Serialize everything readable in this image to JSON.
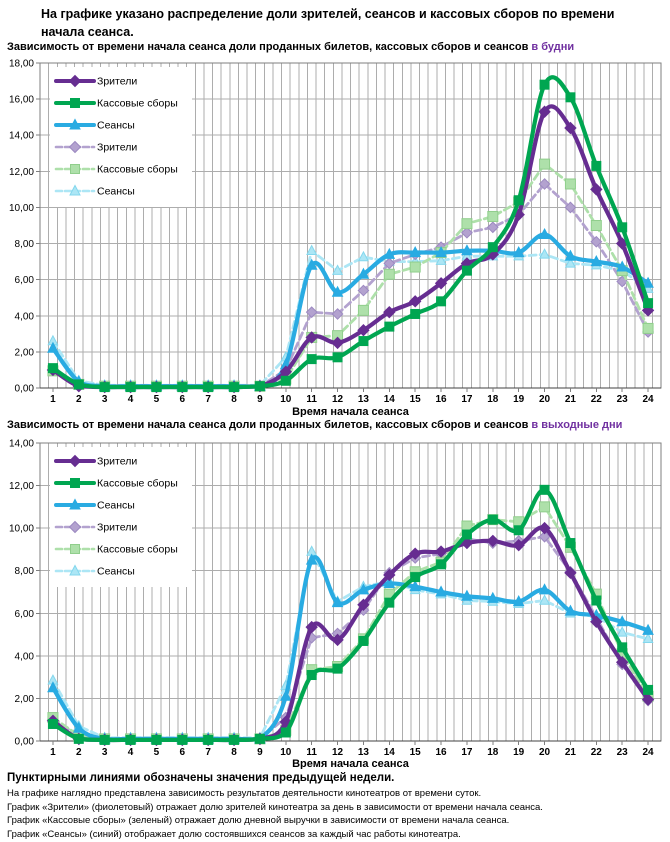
{
  "header": {
    "title": "На графике указано распределение доли зрителей, сеансов и кассовых сборов по времени начала сеанса."
  },
  "chart_data": [
    {
      "type": "line",
      "subtitle": "Зависимость от времени начала сеанса доли проданных билетов, кассовых сборов и сеансов",
      "subtitle_highlight": "в будни",
      "highlight_color": "#7030A0",
      "xlabel": "Время начала сеанса",
      "x": [
        1,
        2,
        3,
        4,
        5,
        6,
        7,
        8,
        9,
        10,
        11,
        12,
        13,
        14,
        15,
        16,
        17,
        18,
        19,
        20,
        21,
        22,
        23,
        24
      ],
      "ylim": [
        0,
        18
      ],
      "ytick_step": 2,
      "grid": true,
      "legend_position": "top-left",
      "series": [
        {
          "key": "viewers",
          "name": "Зрители",
          "color": "#662D91",
          "edge": "#662D91",
          "style": "solid",
          "marker": "diamond",
          "values": [
            1.0,
            0.1,
            0.05,
            0.05,
            0.05,
            0.05,
            0.05,
            0.05,
            0.1,
            0.9,
            2.8,
            2.5,
            3.2,
            4.2,
            4.8,
            5.8,
            6.9,
            7.4,
            9.6,
            15.3,
            14.4,
            11.0,
            8.0,
            4.3
          ]
        },
        {
          "key": "box-office",
          "name": "Кассовые сборы",
          "color": "#00A651",
          "edge": "#00A651",
          "style": "solid",
          "marker": "square",
          "values": [
            1.1,
            0.2,
            0.05,
            0.05,
            0.05,
            0.05,
            0.05,
            0.05,
            0.1,
            0.4,
            1.6,
            1.7,
            2.6,
            3.4,
            4.1,
            4.8,
            6.5,
            7.8,
            10.4,
            16.8,
            16.1,
            12.3,
            8.9,
            4.7
          ]
        },
        {
          "key": "sessions",
          "name": "Сеансы",
          "color": "#29ABE2",
          "edge": "#29ABE2",
          "style": "solid",
          "marker": "triangle",
          "values": [
            2.2,
            0.35,
            0.1,
            0.1,
            0.1,
            0.1,
            0.1,
            0.1,
            0.1,
            1.3,
            6.8,
            5.3,
            6.3,
            7.4,
            7.5,
            7.5,
            7.6,
            7.6,
            7.5,
            8.5,
            7.3,
            7.0,
            6.7,
            5.8
          ]
        },
        {
          "key": "viewers-prev-week",
          "name": "Зрители",
          "color": "#B3A2CF",
          "edge": "#9C89C1",
          "style": "dashed",
          "marker": "diamond",
          "values": [
            1.0,
            0.2,
            0.1,
            0.1,
            0.1,
            0.1,
            0.1,
            0.1,
            0.1,
            1.0,
            4.2,
            4.1,
            5.4,
            6.9,
            7.4,
            7.8,
            8.6,
            8.9,
            9.6,
            11.3,
            10.0,
            8.1,
            5.9,
            3.1
          ]
        },
        {
          "key": "box-office-prev-week",
          "name": "Кассовые сборы",
          "color": "#AEE0AA",
          "edge": "#90CE8C",
          "style": "dashed",
          "marker": "square",
          "values": [
            0.95,
            0.2,
            0.1,
            0.1,
            0.1,
            0.1,
            0.1,
            0.1,
            0.1,
            0.5,
            2.8,
            2.9,
            4.3,
            6.3,
            6.7,
            7.5,
            9.1,
            9.5,
            10.3,
            12.4,
            11.3,
            9.0,
            6.5,
            3.3
          ]
        },
        {
          "key": "sessions-prev-week",
          "name": "Сеансы",
          "color": "#ACE6F5",
          "edge": "#83D7ED",
          "style": "dashed",
          "marker": "triangle",
          "values": [
            2.6,
            0.4,
            0.15,
            0.15,
            0.15,
            0.15,
            0.15,
            0.15,
            0.15,
            1.7,
            7.6,
            6.5,
            7.25,
            7.0,
            7.0,
            7.05,
            7.3,
            7.3,
            7.3,
            7.4,
            6.9,
            6.8,
            6.5,
            5.5
          ]
        }
      ]
    },
    {
      "type": "line",
      "subtitle": "Зависимость от времени начала сеанса доли проданных билетов, кассовых сборов и сеансов",
      "subtitle_highlight": "в выходные дни",
      "highlight_color": "#7030A0",
      "xlabel": "Время начала сеанса",
      "x": [
        1,
        2,
        3,
        4,
        5,
        6,
        7,
        8,
        9,
        10,
        11,
        12,
        13,
        14,
        15,
        16,
        17,
        18,
        19,
        20,
        21,
        22,
        23,
        24
      ],
      "ylim": [
        0,
        14
      ],
      "ytick_step": 2,
      "grid": true,
      "legend_position": "top-left",
      "series": [
        {
          "key": "viewers",
          "name": "Зрители",
          "color": "#662D91",
          "edge": "#662D91",
          "style": "solid",
          "marker": "diamond",
          "values": [
            0.95,
            0.1,
            0.05,
            0.05,
            0.05,
            0.05,
            0.05,
            0.05,
            0.1,
            0.9,
            5.35,
            4.75,
            6.4,
            7.8,
            8.8,
            8.9,
            9.3,
            9.4,
            9.2,
            10.0,
            7.9,
            5.6,
            3.7,
            1.95
          ]
        },
        {
          "key": "box-office",
          "name": "Кассовые сборы",
          "color": "#00A651",
          "edge": "#00A651",
          "style": "solid",
          "marker": "square",
          "values": [
            0.8,
            0.1,
            0.05,
            0.05,
            0.05,
            0.05,
            0.05,
            0.05,
            0.1,
            0.4,
            3.1,
            3.4,
            4.7,
            6.5,
            7.7,
            8.3,
            9.7,
            10.4,
            9.9,
            11.8,
            9.3,
            6.6,
            4.4,
            2.4
          ]
        },
        {
          "key": "sessions",
          "name": "Сеансы",
          "color": "#29ABE2",
          "edge": "#29ABE2",
          "style": "solid",
          "marker": "triangle",
          "values": [
            2.5,
            0.6,
            0.1,
            0.1,
            0.1,
            0.1,
            0.1,
            0.1,
            0.1,
            2.1,
            8.5,
            6.5,
            7.1,
            7.4,
            7.25,
            7.0,
            6.8,
            6.7,
            6.55,
            7.1,
            6.1,
            5.9,
            5.6,
            5.2
          ]
        },
        {
          "key": "viewers-prev-week",
          "name": "Зрители",
          "color": "#B3A2CF",
          "edge": "#9C89C1",
          "style": "dashed",
          "marker": "diamond",
          "values": [
            1.0,
            0.25,
            0.1,
            0.1,
            0.1,
            0.1,
            0.1,
            0.1,
            0.1,
            1.1,
            4.85,
            5.05,
            6.15,
            7.9,
            8.6,
            8.8,
            9.5,
            9.3,
            9.4,
            9.6,
            7.95,
            5.8,
            3.6,
            1.9
          ]
        },
        {
          "key": "box-office-prev-week",
          "name": "Кассовые сборы",
          "color": "#AEE0AA",
          "edge": "#90CE8C",
          "style": "dashed",
          "marker": "square",
          "values": [
            1.1,
            0.25,
            0.1,
            0.1,
            0.1,
            0.1,
            0.1,
            0.1,
            0.1,
            0.5,
            3.35,
            3.5,
            4.8,
            6.9,
            7.95,
            8.4,
            10.1,
            10.4,
            10.3,
            11.0,
            9.1,
            6.9,
            4.1,
            2.1
          ]
        },
        {
          "key": "sessions-prev-week",
          "name": "Сеансы",
          "color": "#ACE6F5",
          "edge": "#83D7ED",
          "style": "dashed",
          "marker": "triangle",
          "values": [
            2.85,
            0.7,
            0.15,
            0.15,
            0.15,
            0.15,
            0.15,
            0.15,
            0.15,
            2.6,
            8.9,
            6.55,
            7.25,
            7.5,
            7.1,
            6.9,
            6.6,
            6.55,
            6.45,
            6.6,
            6.0,
            5.85,
            5.1,
            4.8
          ]
        }
      ]
    }
  ],
  "footer": {
    "bold_note": "Пунктирными линиями обозначены значения предыдущей недели.",
    "lines": [
      "На графике наглядно представлена зависимость результатов деятельности кинотеатров от времени суток.",
      "График «Зрители» (фиолетовый)  отражает долю зрителей кинотеатра за день в зависимости от времени  начала сеанса.",
      "График «Кассовые сборы» (зеленый) отражает долю дневной выручки в зависимости от времени начала сеанса.",
      "График «Сеансы» (синий) отображает долю состоявшихся сеансов  за каждый час работы кинотеатра."
    ]
  },
  "colors": {
    "grid": "#ADADAD",
    "plot_border": "#7F7F7F",
    "axis_line": "#404040",
    "highlight": "#7030A0"
  }
}
